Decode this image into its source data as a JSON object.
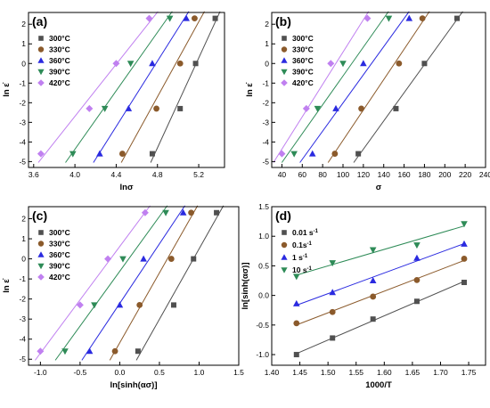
{
  "chart_data": [
    {
      "id": "a",
      "type": "scatter",
      "panel_label": "(a)",
      "xlabel": "lnσ",
      "ylabel": "ln ε̇",
      "xlim": [
        3.55,
        5.45
      ],
      "ylim": [
        -5.3,
        2.6
      ],
      "xticks": [
        3.6,
        4.0,
        4.4,
        4.8,
        5.2
      ],
      "xtick_labels": [
        "3.6",
        "4.0",
        "4.4",
        "4.8",
        "5.2"
      ],
      "yticks": [
        -5,
        -4,
        -3,
        -2,
        -1,
        0,
        1,
        2
      ],
      "legend_position": "top-left",
      "fit_lines": true,
      "series": [
        {
          "name": "300°C",
          "color": "#505050",
          "marker": "square",
          "points": [
            [
              4.75,
              -4.6
            ],
            [
              5.02,
              -2.3
            ],
            [
              5.17,
              0.0
            ],
            [
              5.36,
              2.3
            ]
          ]
        },
        {
          "name": "330°C",
          "color": "#8b5a2b",
          "marker": "circle",
          "points": [
            [
              4.46,
              -4.6
            ],
            [
              4.79,
              -2.3
            ],
            [
              5.02,
              0.0
            ],
            [
              5.16,
              2.3
            ]
          ]
        },
        {
          "name": "360°C",
          "color": "#2a2ae0",
          "marker": "triangle-up",
          "points": [
            [
              4.24,
              -4.6
            ],
            [
              4.52,
              -2.3
            ],
            [
              4.75,
              0.0
            ],
            [
              5.08,
              2.3
            ]
          ]
        },
        {
          "name": "390°C",
          "color": "#2e8b57",
          "marker": "triangle-down",
          "points": [
            [
              3.98,
              -4.6
            ],
            [
              4.29,
              -2.3
            ],
            [
              4.54,
              0.0
            ],
            [
              4.92,
              2.3
            ]
          ]
        },
        {
          "name": "420°C",
          "color": "#c080f0",
          "marker": "diamond",
          "points": [
            [
              3.67,
              -4.6
            ],
            [
              4.14,
              -2.3
            ],
            [
              4.4,
              0.0
            ],
            [
              4.72,
              2.3
            ]
          ]
        }
      ]
    },
    {
      "id": "b",
      "type": "scatter",
      "panel_label": "(b)",
      "xlabel": "σ",
      "ylabel": "ln ε̇",
      "xlim": [
        30,
        240
      ],
      "ylim": [
        -5.3,
        2.6
      ],
      "xticks": [
        40,
        60,
        80,
        100,
        120,
        140,
        160,
        180,
        200,
        220,
        240
      ],
      "xtick_labels": [
        "40",
        "60",
        "80",
        "100",
        "120",
        "140",
        "160",
        "180",
        "200",
        "220",
        "240"
      ],
      "yticks": [
        -5,
        -4,
        -3,
        -2,
        -1,
        0,
        1,
        2
      ],
      "legend_position": "top-left",
      "fit_lines": true,
      "series": [
        {
          "name": "300°C",
          "color": "#505050",
          "marker": "square",
          "points": [
            [
              115,
              -4.6
            ],
            [
              152,
              -2.3
            ],
            [
              180,
              0.0
            ],
            [
              212,
              2.3
            ]
          ]
        },
        {
          "name": "330°C",
          "color": "#8b5a2b",
          "marker": "circle",
          "points": [
            [
              92,
              -4.6
            ],
            [
              118,
              -2.3
            ],
            [
              155,
              0.0
            ],
            [
              178,
              2.3
            ]
          ]
        },
        {
          "name": "360°C",
          "color": "#2a2ae0",
          "marker": "triangle-up",
          "points": [
            [
              70,
              -4.6
            ],
            [
              93,
              -2.3
            ],
            [
              120,
              0.0
            ],
            [
              165,
              2.3
            ]
          ]
        },
        {
          "name": "390°C",
          "color": "#2e8b57",
          "marker": "triangle-down",
          "points": [
            [
              52,
              -4.6
            ],
            [
              75,
              -2.3
            ],
            [
              100,
              0.0
            ],
            [
              145,
              2.3
            ]
          ]
        },
        {
          "name": "420°C",
          "color": "#c080f0",
          "marker": "diamond",
          "points": [
            [
              40,
              -4.6
            ],
            [
              64,
              -2.3
            ],
            [
              88,
              0.0
            ],
            [
              124,
              2.3
            ]
          ]
        }
      ]
    },
    {
      "id": "c",
      "type": "scatter",
      "panel_label": "(c)",
      "xlabel": "ln[sinh(ασ)]",
      "ylabel": "ln ε̇",
      "xlim": [
        -1.15,
        1.5
      ],
      "ylim": [
        -5.3,
        2.6
      ],
      "xticks": [
        -1.0,
        -0.5,
        0.0,
        0.5,
        1.0,
        1.5
      ],
      "xtick_labels": [
        "-1.0",
        "-0.5",
        "0.0",
        "0.5",
        "1.0",
        "1.5"
      ],
      "yticks": [
        -5,
        -4,
        -3,
        -2,
        -1,
        0,
        1,
        2
      ],
      "legend_position": "top-left",
      "fit_lines": true,
      "series": [
        {
          "name": "300°C",
          "color": "#505050",
          "marker": "square",
          "points": [
            [
              0.23,
              -4.6
            ],
            [
              0.68,
              -2.3
            ],
            [
              0.93,
              0.0
            ],
            [
              1.22,
              2.3
            ]
          ]
        },
        {
          "name": "330°C",
          "color": "#8b5a2b",
          "marker": "circle",
          "points": [
            [
              -0.06,
              -4.6
            ],
            [
              0.25,
              -2.3
            ],
            [
              0.65,
              0.0
            ],
            [
              0.9,
              2.3
            ]
          ]
        },
        {
          "name": "360°C",
          "color": "#2a2ae0",
          "marker": "triangle-up",
          "points": [
            [
              -0.38,
              -4.6
            ],
            [
              0.0,
              -2.3
            ],
            [
              0.3,
              0.0
            ],
            [
              0.8,
              2.3
            ]
          ]
        },
        {
          "name": "390°C",
          "color": "#2e8b57",
          "marker": "triangle-down",
          "points": [
            [
              -0.69,
              -4.6
            ],
            [
              -0.32,
              -2.3
            ],
            [
              0.04,
              0.0
            ],
            [
              0.58,
              2.3
            ]
          ]
        },
        {
          "name": "420°C",
          "color": "#c080f0",
          "marker": "diamond",
          "points": [
            [
              -1.0,
              -4.6
            ],
            [
              -0.5,
              -2.3
            ],
            [
              -0.15,
              0.0
            ],
            [
              0.32,
              2.3
            ]
          ]
        }
      ]
    },
    {
      "id": "d",
      "type": "scatter",
      "panel_label": "(d)",
      "xlabel": "1000/T",
      "ylabel": "ln[sinh(ασ)]",
      "xlim": [
        1.4,
        1.78
      ],
      "ylim": [
        -1.18,
        1.5
      ],
      "xticks": [
        1.4,
        1.45,
        1.5,
        1.55,
        1.6,
        1.65,
        1.7,
        1.75
      ],
      "xtick_labels": [
        "1.40",
        "1.45",
        "1.50",
        "1.55",
        "1.60",
        "1.65",
        "1.70",
        "1.75"
      ],
      "yticks": [
        -1.0,
        -0.5,
        0.0,
        0.5,
        1.0,
        1.5
      ],
      "ytick_labels": [
        "-1.0",
        "-0.5",
        "0.0",
        "0.5",
        "1.0",
        "1.5"
      ],
      "legend_position": "top-left",
      "fit_lines": true,
      "series": [
        {
          "name": "0.01 s",
          "unit_sup": "-1",
          "color": "#505050",
          "marker": "square",
          "points": [
            [
              1.444,
              -1.0
            ],
            [
              1.508,
              -0.72
            ],
            [
              1.58,
              -0.4
            ],
            [
              1.658,
              -0.1
            ],
            [
              1.742,
              0.22
            ]
          ]
        },
        {
          "name": "0.1s",
          "unit_sup": "-1",
          "color": "#8b5a2b",
          "marker": "circle",
          "points": [
            [
              1.444,
              -0.47
            ],
            [
              1.508,
              -0.28
            ],
            [
              1.58,
              -0.02
            ],
            [
              1.658,
              0.26
            ],
            [
              1.742,
              0.62
            ]
          ]
        },
        {
          "name": "1 s",
          "unit_sup": "-1",
          "color": "#2a2ae0",
          "marker": "triangle-up",
          "points": [
            [
              1.444,
              -0.14
            ],
            [
              1.508,
              0.05
            ],
            [
              1.58,
              0.25
            ],
            [
              1.658,
              0.63
            ],
            [
              1.742,
              0.87
            ]
          ]
        },
        {
          "name": "10 s",
          "unit_sup": "-1",
          "color": "#2e8b57",
          "marker": "triangle-down",
          "points": [
            [
              1.444,
              0.32
            ],
            [
              1.508,
              0.55
            ],
            [
              1.58,
              0.77
            ],
            [
              1.658,
              0.85
            ],
            [
              1.742,
              1.21
            ]
          ]
        }
      ]
    }
  ]
}
